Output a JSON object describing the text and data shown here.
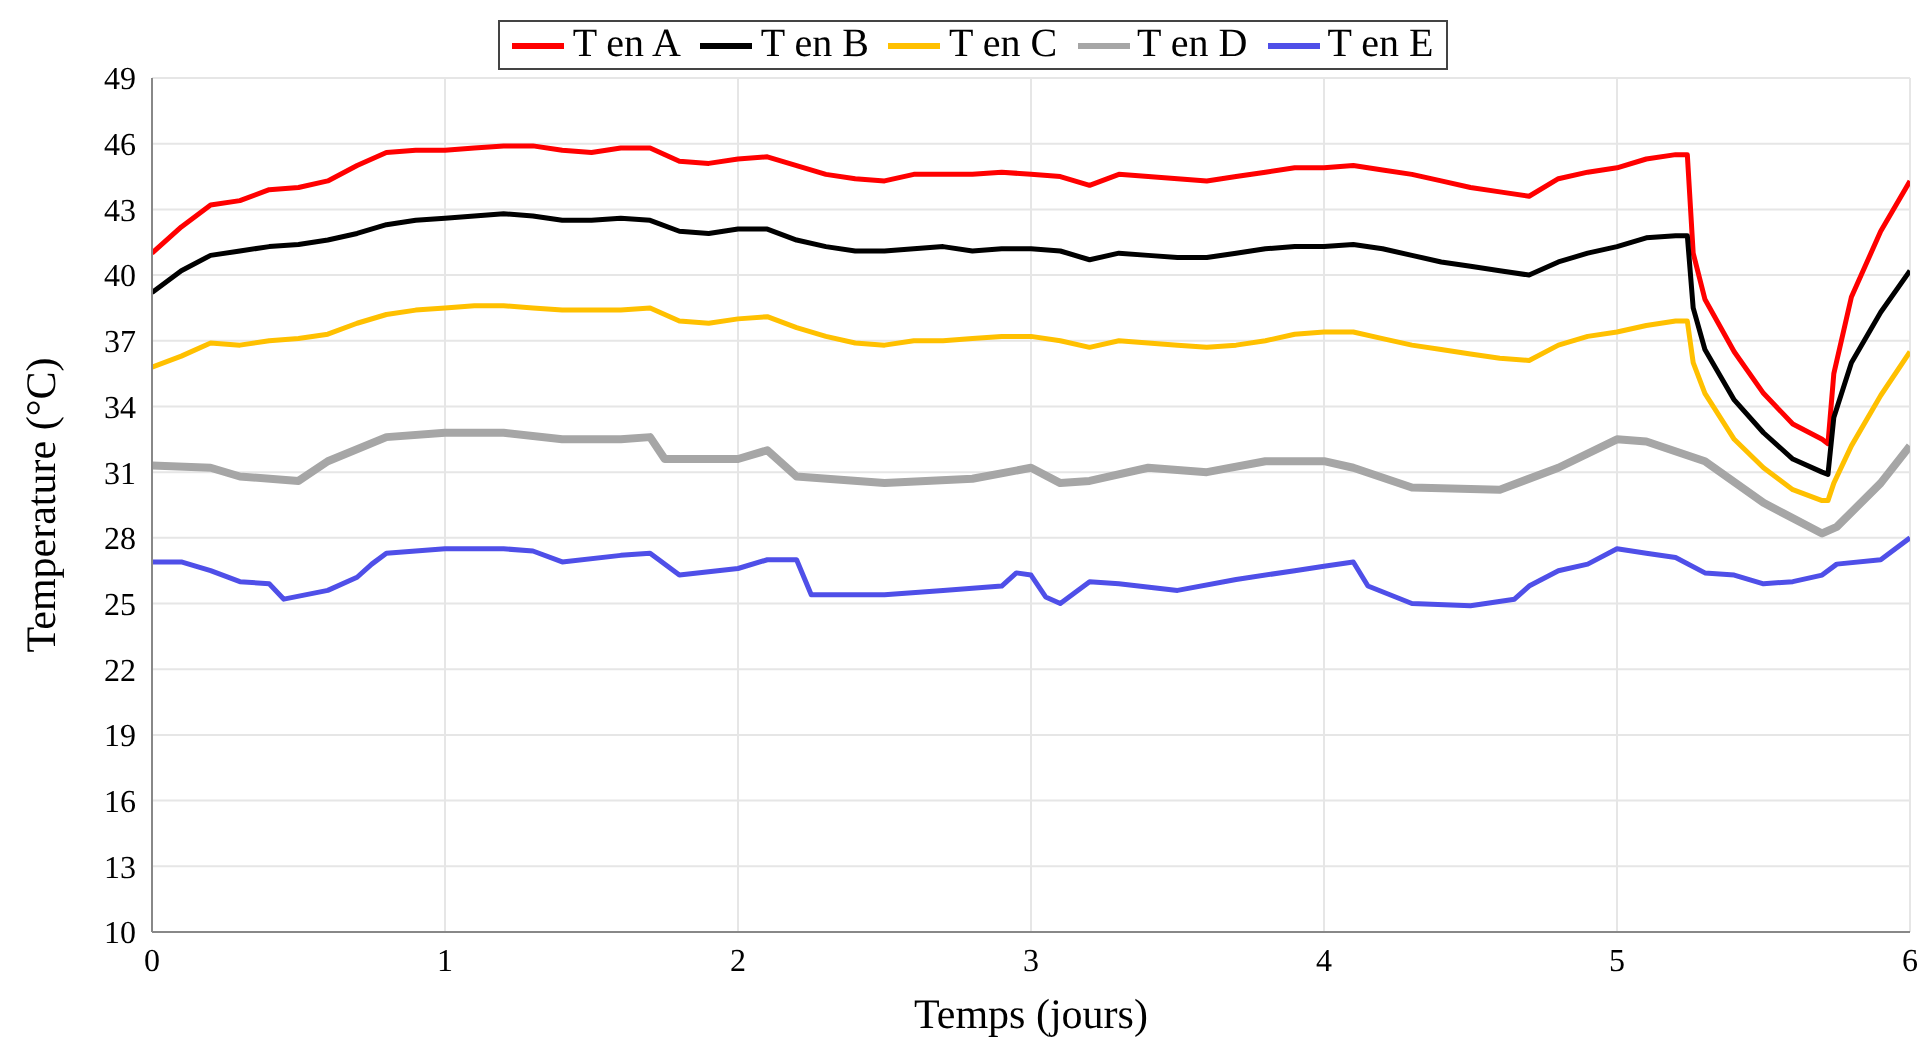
{
  "chart_data": {
    "type": "line",
    "xlabel": "Temps (jours)",
    "ylabel": "Temperature (°C)",
    "xlim": [
      0,
      6
    ],
    "xticks": [
      0,
      1,
      2,
      3,
      4,
      5,
      6
    ],
    "ylim": [
      10,
      49
    ],
    "yticks": [
      10,
      13,
      16,
      19,
      22,
      25,
      28,
      31,
      34,
      37,
      40,
      43,
      46,
      49
    ],
    "grid": true,
    "legend": "top",
    "marker": "none",
    "line_style": "solid",
    "series": [
      {
        "name": "T en A",
        "color": "#ff0000",
        "x": [
          0,
          0.1,
          0.2,
          0.3,
          0.4,
          0.5,
          0.6,
          0.7,
          0.8,
          0.9,
          1.0,
          1.1,
          1.2,
          1.3,
          1.4,
          1.5,
          1.6,
          1.7,
          1.8,
          1.9,
          2.0,
          2.1,
          2.2,
          2.3,
          2.4,
          2.5,
          2.6,
          2.7,
          2.8,
          2.9,
          3.0,
          3.1,
          3.2,
          3.3,
          3.4,
          3.5,
          3.6,
          3.7,
          3.8,
          3.9,
          4.0,
          4.1,
          4.2,
          4.3,
          4.4,
          4.5,
          4.6,
          4.7,
          4.8,
          4.9,
          5.0,
          5.1,
          5.2,
          5.24,
          5.26,
          5.3,
          5.4,
          5.5,
          5.6,
          5.7,
          5.72,
          5.74,
          5.8,
          5.9,
          6.0
        ],
        "values": [
          41,
          42.2,
          43.2,
          43.4,
          43.9,
          44.0,
          44.3,
          45.0,
          45.6,
          45.7,
          45.7,
          45.8,
          45.9,
          45.9,
          45.7,
          45.6,
          45.8,
          45.8,
          45.2,
          45.1,
          45.3,
          45.4,
          45.0,
          44.6,
          44.4,
          44.3,
          44.6,
          44.6,
          44.6,
          44.7,
          44.6,
          44.5,
          44.1,
          44.6,
          44.5,
          44.4,
          44.3,
          44.5,
          44.7,
          44.9,
          44.9,
          45.0,
          44.8,
          44.6,
          44.3,
          44.0,
          43.8,
          43.6,
          44.4,
          44.7,
          44.9,
          45.3,
          45.5,
          45.5,
          41,
          38.9,
          36.5,
          34.6,
          33.2,
          32.5,
          32.3,
          35.5,
          39,
          42,
          44.3
        ]
      },
      {
        "name": "T en B",
        "color": "#000000",
        "x": [
          0,
          0.1,
          0.2,
          0.3,
          0.4,
          0.5,
          0.6,
          0.7,
          0.8,
          0.9,
          1.0,
          1.1,
          1.2,
          1.3,
          1.4,
          1.5,
          1.6,
          1.7,
          1.8,
          1.9,
          2.0,
          2.1,
          2.2,
          2.3,
          2.4,
          2.5,
          2.6,
          2.7,
          2.8,
          2.9,
          3.0,
          3.1,
          3.2,
          3.3,
          3.4,
          3.5,
          3.6,
          3.7,
          3.8,
          3.9,
          4.0,
          4.1,
          4.2,
          4.3,
          4.4,
          4.5,
          4.6,
          4.7,
          4.8,
          4.9,
          5.0,
          5.1,
          5.2,
          5.24,
          5.26,
          5.3,
          5.4,
          5.5,
          5.6,
          5.7,
          5.72,
          5.74,
          5.8,
          5.9,
          6.0
        ],
        "values": [
          39.2,
          40.2,
          40.9,
          41.1,
          41.3,
          41.4,
          41.6,
          41.9,
          42.3,
          42.5,
          42.6,
          42.7,
          42.8,
          42.7,
          42.5,
          42.5,
          42.6,
          42.5,
          42.0,
          41.9,
          42.1,
          42.1,
          41.6,
          41.3,
          41.1,
          41.1,
          41.2,
          41.3,
          41.1,
          41.2,
          41.2,
          41.1,
          40.7,
          41.0,
          40.9,
          40.8,
          40.8,
          41.0,
          41.2,
          41.3,
          41.3,
          41.4,
          41.2,
          40.9,
          40.6,
          40.4,
          40.2,
          40.0,
          40.6,
          41.0,
          41.3,
          41.7,
          41.8,
          41.8,
          38.5,
          36.6,
          34.3,
          32.8,
          31.6,
          31.0,
          30.9,
          33.5,
          36,
          38.3,
          40.2
        ]
      },
      {
        "name": "T en C",
        "color": "#ffc000",
        "x": [
          0,
          0.1,
          0.2,
          0.3,
          0.4,
          0.5,
          0.6,
          0.7,
          0.8,
          0.9,
          1.0,
          1.1,
          1.2,
          1.3,
          1.4,
          1.5,
          1.6,
          1.7,
          1.8,
          1.9,
          2.0,
          2.1,
          2.2,
          2.3,
          2.4,
          2.5,
          2.6,
          2.7,
          2.8,
          2.9,
          3.0,
          3.1,
          3.2,
          3.3,
          3.4,
          3.5,
          3.6,
          3.7,
          3.8,
          3.9,
          4.0,
          4.1,
          4.2,
          4.3,
          4.4,
          4.5,
          4.6,
          4.7,
          4.8,
          4.9,
          5.0,
          5.1,
          5.2,
          5.24,
          5.26,
          5.3,
          5.4,
          5.5,
          5.6,
          5.7,
          5.72,
          5.74,
          5.8,
          5.9,
          6.0
        ],
        "values": [
          35.8,
          36.3,
          36.9,
          36.8,
          37.0,
          37.1,
          37.3,
          37.8,
          38.2,
          38.4,
          38.5,
          38.6,
          38.6,
          38.5,
          38.4,
          38.4,
          38.4,
          38.5,
          37.9,
          37.8,
          38.0,
          38.1,
          37.6,
          37.2,
          36.9,
          36.8,
          37.0,
          37.0,
          37.1,
          37.2,
          37.2,
          37.0,
          36.7,
          37.0,
          36.9,
          36.8,
          36.7,
          36.8,
          37.0,
          37.3,
          37.4,
          37.4,
          37.1,
          36.8,
          36.6,
          36.4,
          36.2,
          36.1,
          36.8,
          37.2,
          37.4,
          37.7,
          37.9,
          37.9,
          36,
          34.6,
          32.5,
          31.2,
          30.2,
          29.7,
          29.7,
          30.5,
          32.2,
          34.5,
          36.5
        ]
      },
      {
        "name": "T en D",
        "color": "#a6a6a6",
        "x": [
          0,
          0.2,
          0.3,
          0.5,
          0.6,
          0.8,
          1.0,
          1.2,
          1.4,
          1.6,
          1.7,
          1.75,
          2.0,
          2.1,
          2.2,
          2.5,
          2.8,
          3.0,
          3.1,
          3.2,
          3.4,
          3.6,
          3.8,
          4.0,
          4.1,
          4.3,
          4.6,
          4.8,
          5.0,
          5.1,
          5.3,
          5.5,
          5.7,
          5.75,
          5.9,
          6.0
        ],
        "values": [
          31.3,
          31.2,
          30.8,
          30.6,
          31.5,
          32.6,
          32.8,
          32.8,
          32.5,
          32.5,
          32.6,
          31.6,
          31.6,
          32.0,
          30.8,
          30.5,
          30.7,
          31.2,
          30.5,
          30.6,
          31.2,
          31.0,
          31.5,
          31.5,
          31.2,
          30.3,
          30.2,
          31.2,
          32.5,
          32.4,
          31.5,
          29.6,
          28.2,
          28.5,
          30.5,
          32.2
        ]
      },
      {
        "name": "T en E",
        "color": "#4f4fe8",
        "x": [
          0,
          0.1,
          0.2,
          0.3,
          0.4,
          0.45,
          0.6,
          0.7,
          0.75,
          0.8,
          1.0,
          1.2,
          1.3,
          1.4,
          1.6,
          1.7,
          1.8,
          2.0,
          2.1,
          2.2,
          2.25,
          2.5,
          2.7,
          2.9,
          2.95,
          3.0,
          3.05,
          3.1,
          3.2,
          3.3,
          3.5,
          3.7,
          3.9,
          4.0,
          4.1,
          4.15,
          4.3,
          4.5,
          4.65,
          4.7,
          4.8,
          4.9,
          5.0,
          5.1,
          5.2,
          5.3,
          5.4,
          5.5,
          5.6,
          5.7,
          5.75,
          5.9,
          6.0
        ],
        "values": [
          26.9,
          26.9,
          26.5,
          26.0,
          25.9,
          25.2,
          25.6,
          26.2,
          26.8,
          27.3,
          27.5,
          27.5,
          27.4,
          26.9,
          27.2,
          27.3,
          26.3,
          26.6,
          27.0,
          27.0,
          25.4,
          25.4,
          25.6,
          25.8,
          26.4,
          26.3,
          25.3,
          25.0,
          26.0,
          25.9,
          25.6,
          26.1,
          26.5,
          26.7,
          26.9,
          25.8,
          25.0,
          24.9,
          25.2,
          25.8,
          26.5,
          26.8,
          27.5,
          27.3,
          27.1,
          26.4,
          26.3,
          25.9,
          26.0,
          26.3,
          26.8,
          27.0,
          28.0
        ]
      }
    ]
  }
}
